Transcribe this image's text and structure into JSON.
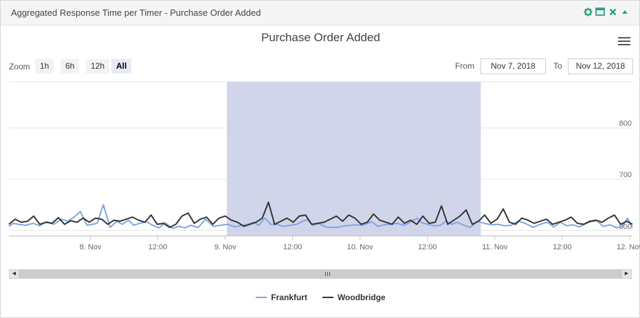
{
  "panel": {
    "title": "Aggregated Response Time per Timer - Purchase Order Added",
    "tools": [
      "gear-icon",
      "maximize-icon",
      "close-icon",
      "collapse-icon"
    ]
  },
  "toolbar": {
    "zoom_label": "Zoom",
    "zoom_buttons": [
      {
        "label": "1h",
        "active": false
      },
      {
        "label": "6h",
        "active": false
      },
      {
        "label": "12h",
        "active": false
      },
      {
        "label": "All",
        "active": true
      }
    ],
    "from_label": "From",
    "from_value": "Nov 7, 2018",
    "to_label": "To",
    "to_value": "Nov 12, 2018"
  },
  "chart_data": {
    "type": "line",
    "title": "Purchase Order Added",
    "xlabel": "",
    "ylabel": "",
    "x_unit": "hours since 8. Nov 00:00",
    "xlim": [
      -14.5,
      96.5
    ],
    "ylim": [
      590,
      890
    ],
    "y_ticks": [
      600,
      700,
      800
    ],
    "x_ticks": [
      {
        "x": 0,
        "label": "8. Nov"
      },
      {
        "x": 12,
        "label": "12:00"
      },
      {
        "x": 24,
        "label": "9. Nov"
      },
      {
        "x": 36,
        "label": "12:00"
      },
      {
        "x": 48,
        "label": "10. Nov"
      },
      {
        "x": 60,
        "label": "12:00"
      },
      {
        "x": 72,
        "label": "11. Nov"
      },
      {
        "x": 84,
        "label": "12:00"
      },
      {
        "x": 96,
        "label": "12. Nov"
      }
    ],
    "selected_range": [
      24.3,
      69.5
    ],
    "grid": "horizontal",
    "legend": "bottom-center",
    "series": [
      {
        "name": "Frankfurt",
        "color": "#7ea6e0",
        "x": [
          -14.5,
          -13.7,
          -12.8,
          -11.5,
          -10.2,
          -9.0,
          -7.8,
          -6.5,
          -5.2,
          -4.0,
          -2.9,
          -1.8,
          -0.6,
          0.3,
          1.2,
          2.3,
          3.5,
          4.7,
          5.7,
          6.8,
          7.7,
          8.8,
          10.0,
          11.1,
          12.2,
          13.3,
          14.6,
          15.8,
          16.8,
          17.9,
          19.2,
          20.5,
          21.9,
          23.1,
          24.4,
          25.7,
          26.9,
          28.0,
          29.1,
          30.0,
          31.0,
          32.1,
          33.2,
          34.3,
          35.5,
          36.7,
          37.8,
          38.6,
          39.6,
          40.7,
          41.8,
          42.9,
          44.0,
          45.2,
          46.4,
          47.5,
          48.3,
          49.2,
          50.1,
          51.2,
          52.3,
          53.4,
          54.6,
          55.9,
          57.1,
          58.2,
          59.0,
          60.1,
          61.2,
          62.3,
          63.3,
          64.3,
          65.2,
          66.3,
          67.6,
          68.9,
          70.1,
          71.4,
          72.6,
          73.8,
          74.9,
          76.1,
          77.4,
          78.8,
          80.1,
          81.3,
          82.5,
          83.7,
          84.8,
          85.9,
          87.0,
          88.1,
          89.1,
          90.2,
          91.3,
          92.5,
          93.7,
          94.7,
          95.6,
          96.5
        ],
        "y": [
          608,
          614,
          612,
          610,
          614,
          609,
          617,
          612,
          622,
          618,
          626,
          637,
          610,
          612,
          614,
          650,
          606,
          618,
          612,
          620,
          610,
          614,
          617,
          610,
          605,
          615,
          604,
          608,
          605,
          610,
          606,
          622,
          608,
          610,
          612,
          607,
          610,
          612,
          616,
          610,
          624,
          612,
          612,
          608,
          610,
          612,
          618,
          621,
          610,
          614,
          607,
          606,
          606,
          609,
          610,
          611,
          610,
          613,
          617,
          608,
          611,
          612,
          614,
          610,
          617,
          624,
          615,
          612,
          609,
          610,
          618,
          612,
          616,
          611,
          606,
          618,
          614,
          611,
          612,
          609,
          610,
          618,
          614,
          606,
          612,
          616,
          607,
          616,
          609,
          611,
          607,
          613,
          617,
          619,
          608,
          611,
          605,
          608,
          624,
          606
        ]
      },
      {
        "name": "Woodbridge",
        "color": "#333333",
        "x": [
          -14.5,
          -13.4,
          -12.3,
          -11.2,
          -10.1,
          -9.0,
          -7.9,
          -6.8,
          -5.7,
          -4.6,
          -3.5,
          -2.4,
          -1.3,
          -0.2,
          0.9,
          2.0,
          3.1,
          4.2,
          5.3,
          6.4,
          7.5,
          8.6,
          9.7,
          10.8,
          11.9,
          13.0,
          14.1,
          15.2,
          16.3,
          17.4,
          18.5,
          19.6,
          20.7,
          21.8,
          22.9,
          24.0,
          25.1,
          26.2,
          27.3,
          28.4,
          29.5,
          30.6,
          31.7,
          32.8,
          33.9,
          35.0,
          36.1,
          37.2,
          38.3,
          39.4,
          40.5,
          41.6,
          42.7,
          43.8,
          44.9,
          46.0,
          47.1,
          48.2,
          49.3,
          50.4,
          51.5,
          52.6,
          53.7,
          54.8,
          55.9,
          57.0,
          58.1,
          59.2,
          60.3,
          61.4,
          62.5,
          63.6,
          64.7,
          65.8,
          66.9,
          68.0,
          69.1,
          70.2,
          71.3,
          72.4,
          73.5,
          74.6,
          75.7,
          76.8,
          77.9,
          79.0,
          80.1,
          81.2,
          82.3,
          83.4,
          84.5,
          85.6,
          86.7,
          87.8,
          88.9,
          90.0,
          91.1,
          92.2,
          93.3,
          94.4,
          95.5,
          96.5
        ],
        "y": [
          612,
          622,
          616,
          618,
          628,
          612,
          616,
          614,
          625,
          612,
          619,
          616,
          624,
          616,
          624,
          622,
          612,
          620,
          618,
          622,
          626,
          620,
          616,
          630,
          612,
          614,
          606,
          612,
          628,
          634,
          614,
          622,
          626,
          612,
          624,
          628,
          620,
          616,
          608,
          612,
          616,
          624,
          655,
          612,
          618,
          624,
          616,
          628,
          630,
          612,
          614,
          616,
          622,
          628,
          618,
          630,
          624,
          612,
          616,
          632,
          620,
          616,
          612,
          626,
          614,
          620,
          612,
          628,
          614,
          616,
          648,
          612,
          620,
          628,
          640,
          612,
          618,
          630,
          614,
          622,
          642,
          616,
          612,
          624,
          620,
          614,
          618,
          622,
          612,
          616,
          620,
          626,
          614,
          612,
          618,
          620,
          616,
          624,
          630,
          612,
          618,
          612
        ]
      }
    ]
  },
  "scrollbar": {
    "left_arrow": "◀",
    "right_arrow": "▶"
  }
}
